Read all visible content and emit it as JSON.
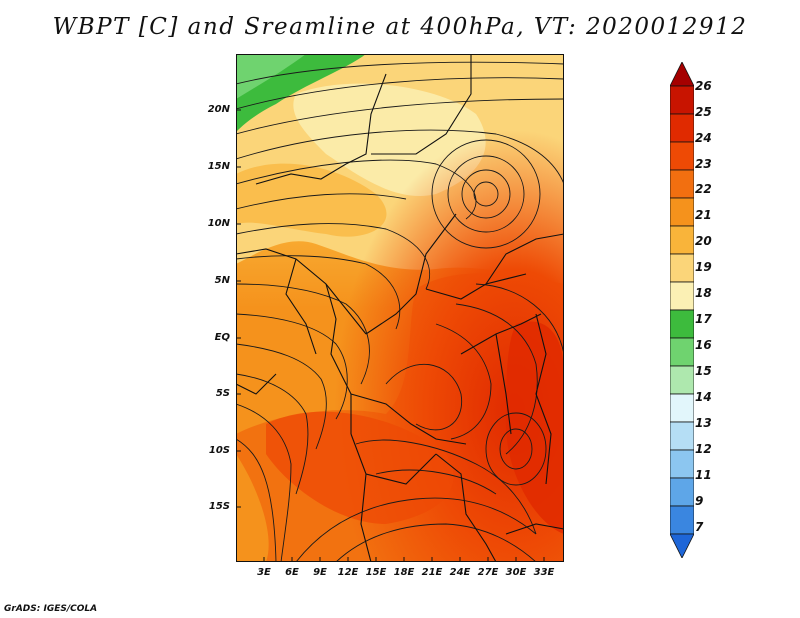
{
  "title": "WBPT [C] and Sreamline at 400hPa, VT: 2020012912",
  "credit": "GrADS: IGES/COLA",
  "map": {
    "lat_labels": [
      "20N",
      "15N",
      "10N",
      "5N",
      "EQ",
      "5S",
      "10S",
      "15S"
    ],
    "lon_labels": [
      "3E",
      "6E",
      "9E",
      "12E",
      "15E",
      "18E",
      "21E",
      "24E",
      "27E",
      "30E",
      "33E"
    ]
  },
  "colorbar": {
    "labels": [
      "26",
      "25",
      "24",
      "23",
      "22",
      "21",
      "20",
      "19",
      "18",
      "17",
      "16",
      "15",
      "14",
      "13",
      "12",
      "11",
      "9",
      "7"
    ],
    "colors": [
      "#a50000",
      "#c81400",
      "#e02a00",
      "#ee4a05",
      "#f26f10",
      "#f5921c",
      "#f9b43a",
      "#fbd579",
      "#fbf0b4",
      "#3dbb3d",
      "#6fd36f",
      "#aee8ae",
      "#e2f6fb",
      "#b5def5",
      "#8cc6f0",
      "#5ea6e8",
      "#3a86e0",
      "#1e66d8"
    ]
  }
}
